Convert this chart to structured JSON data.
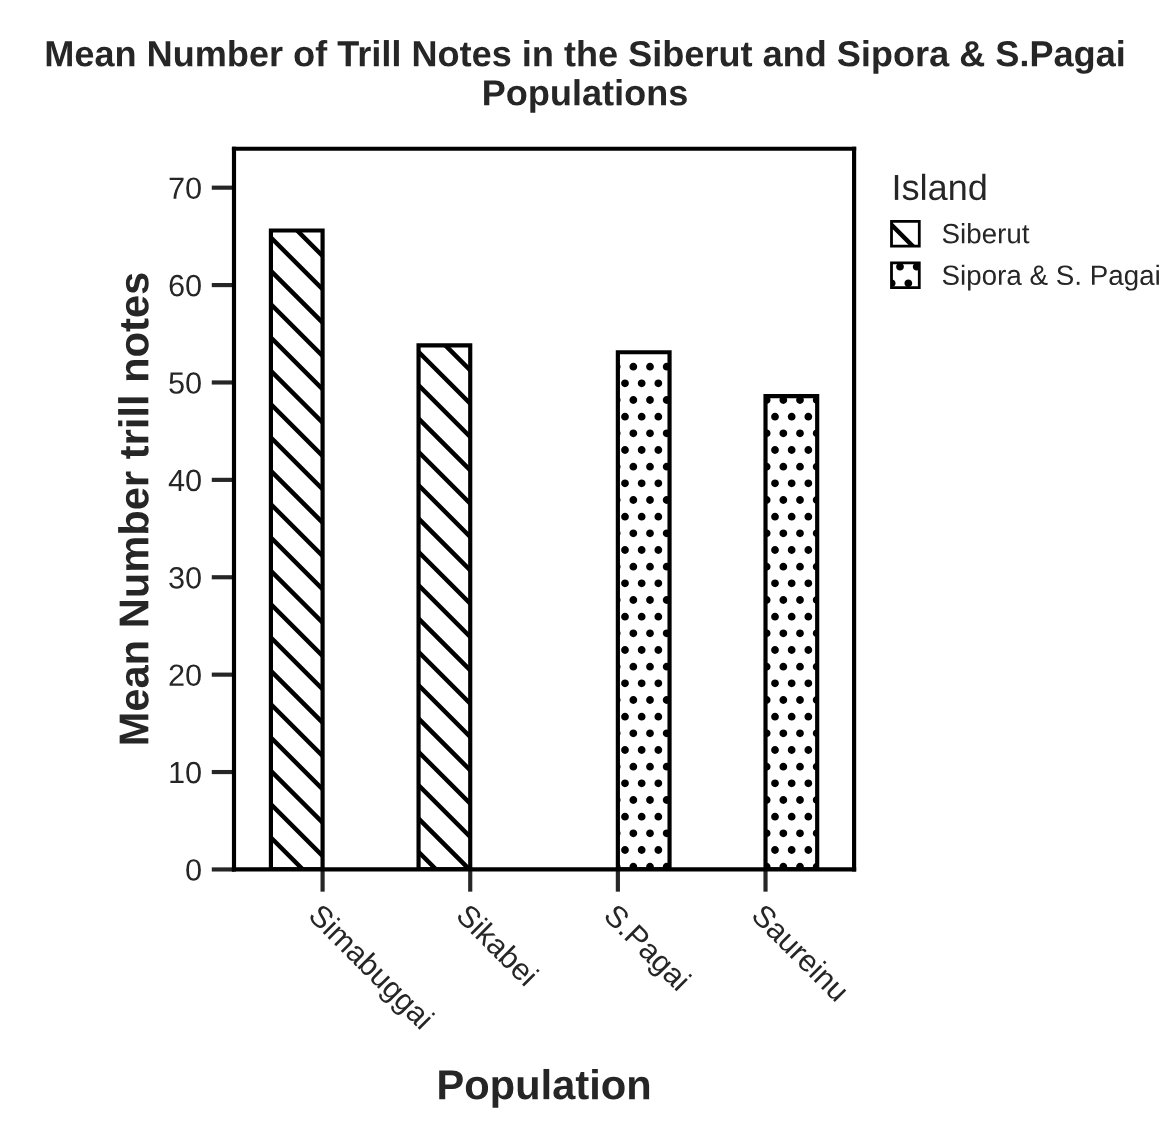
{
  "chart_data": {
    "type": "bar",
    "title": "Mean Number of Trill Notes in the Siberut and Sipora & S.Pagai Populations",
    "xlabel": "Population",
    "ylabel": "Mean Number trill notes",
    "legend_title": "Island",
    "categories": [
      "Simabuggai",
      "Sikabei",
      "S.Pagai",
      "Saureinu"
    ],
    "series": [
      {
        "name": "Siberut",
        "color": "#000000",
        "values": [
          65.6,
          53.8,
          null,
          null
        ]
      },
      {
        "name": "Sipora & S. Pagai",
        "color": "#000000",
        "values": [
          null,
          null,
          53.1,
          48.6
        ]
      }
    ],
    "ylim": [
      0,
      74
    ],
    "yticks": [
      0,
      10,
      20,
      30,
      40,
      50,
      60,
      70
    ],
    "grid": false,
    "legend": "right"
  }
}
